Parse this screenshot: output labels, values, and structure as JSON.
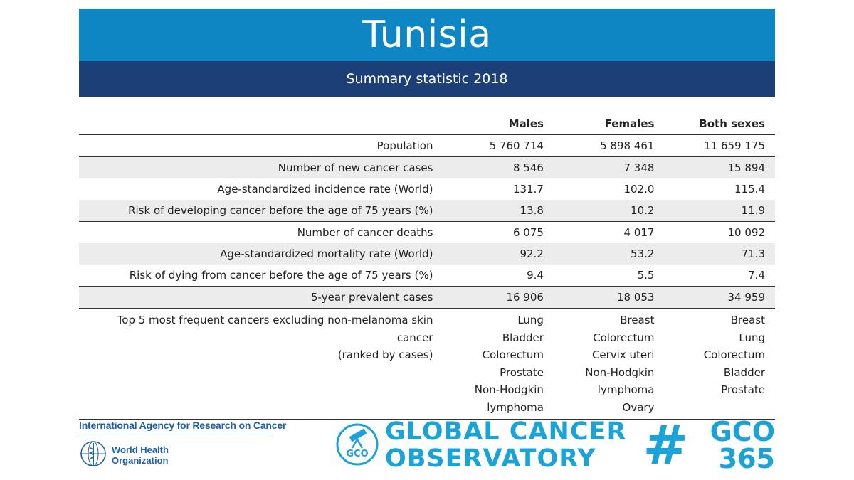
{
  "header": {
    "title": "Tunisia",
    "subtitle": "Summary statistic 2018"
  },
  "table": {
    "columns": [
      "Males",
      "Females",
      "Both sexes"
    ],
    "rows": [
      {
        "label": "Population",
        "values": [
          "5 760 714",
          "5 898 461",
          "11 659 175"
        ]
      },
      {
        "label": "Number of new cancer cases",
        "values": [
          "8 546",
          "7 348",
          "15 894"
        ]
      },
      {
        "label": "Age-standardized incidence rate (World)",
        "values": [
          "131.7",
          "102.0",
          "115.4"
        ]
      },
      {
        "label": "Risk of developing cancer before the age of 75 years (%)",
        "values": [
          "13.8",
          "10.2",
          "11.9"
        ]
      },
      {
        "label": "Number of cancer deaths",
        "values": [
          "6 075",
          "4 017",
          "10 092"
        ]
      },
      {
        "label": "Age-standardized mortality rate (World)",
        "values": [
          "92.2",
          "53.2",
          "71.3"
        ]
      },
      {
        "label": "Risk of dying from cancer before the age of 75 years (%)",
        "values": [
          "9.4",
          "5.5",
          "7.4"
        ]
      },
      {
        "label": "5-year prevalent cases",
        "values": [
          "16 906",
          "18 053",
          "34 959"
        ]
      }
    ],
    "top5": {
      "label_line1": "Top 5 most frequent cancers excluding non-melanoma skin cancer",
      "label_line2": "(ranked by cases)",
      "males": [
        "Lung",
        "Bladder",
        "Colorectum",
        "Prostate",
        "Non-Hodgkin",
        "lymphoma"
      ],
      "females": [
        "Breast",
        "Colorectum",
        "Cervix uteri",
        "Non-Hodgkin",
        "lymphoma",
        "Ovary"
      ],
      "both": [
        "Breast",
        "Lung",
        "Colorectum",
        "Bladder",
        "Prostate"
      ]
    }
  },
  "footer": {
    "iarc": "International Agency for Research on Cancer",
    "who_line1": "World Health",
    "who_line2": "Organization",
    "gco_logo_text": "GCO",
    "gco_line1": "GLOBAL CANCER",
    "gco_line2": "OBSERVATORY",
    "tag_hash": "#",
    "tag_line1": "GCO",
    "tag_line2": "365"
  },
  "colors": {
    "title_bar": "#0f86c4",
    "subtitle_bar": "#1d3f78",
    "shade_row": "#ececec",
    "iarc_blue": "#1f5fa8",
    "gco_cyan": "#1aa3d9"
  }
}
